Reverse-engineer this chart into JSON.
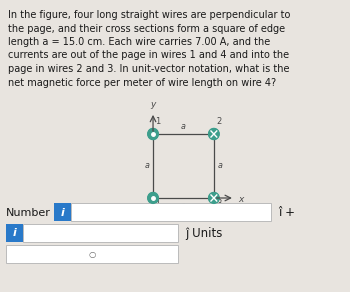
{
  "bg_color": "#e8e4df",
  "diagram_bg": "#f0eeeb",
  "text_color": "#1a1a1a",
  "paragraph_lines": [
    "In the figure, four long straight wires are perpendicular to",
    "the page, and their cross sections form a square of edge",
    "length a = 15.0 cm. Each wire carries 7.00 A, and the",
    "currents are out of the page in wires 1 and 4 and into the",
    "page in wires 2 and 3. In unit-vector notation, what is the",
    "net magnetic force per meter of wire length on wire 4?"
  ],
  "wire_color": "#3d9e8c",
  "wire_fill": "#3d9e8c",
  "line_color": "#4a4a4a",
  "input_box_color": "#ffffff",
  "input_box_border": "#bbbbbb",
  "info_btn_color": "#2979c9",
  "number_label": "Number",
  "ihat_label": "î +",
  "jhat_label": "ĵ Units",
  "i_btn_color": "#2979c9",
  "dropdown_symbol": "○"
}
